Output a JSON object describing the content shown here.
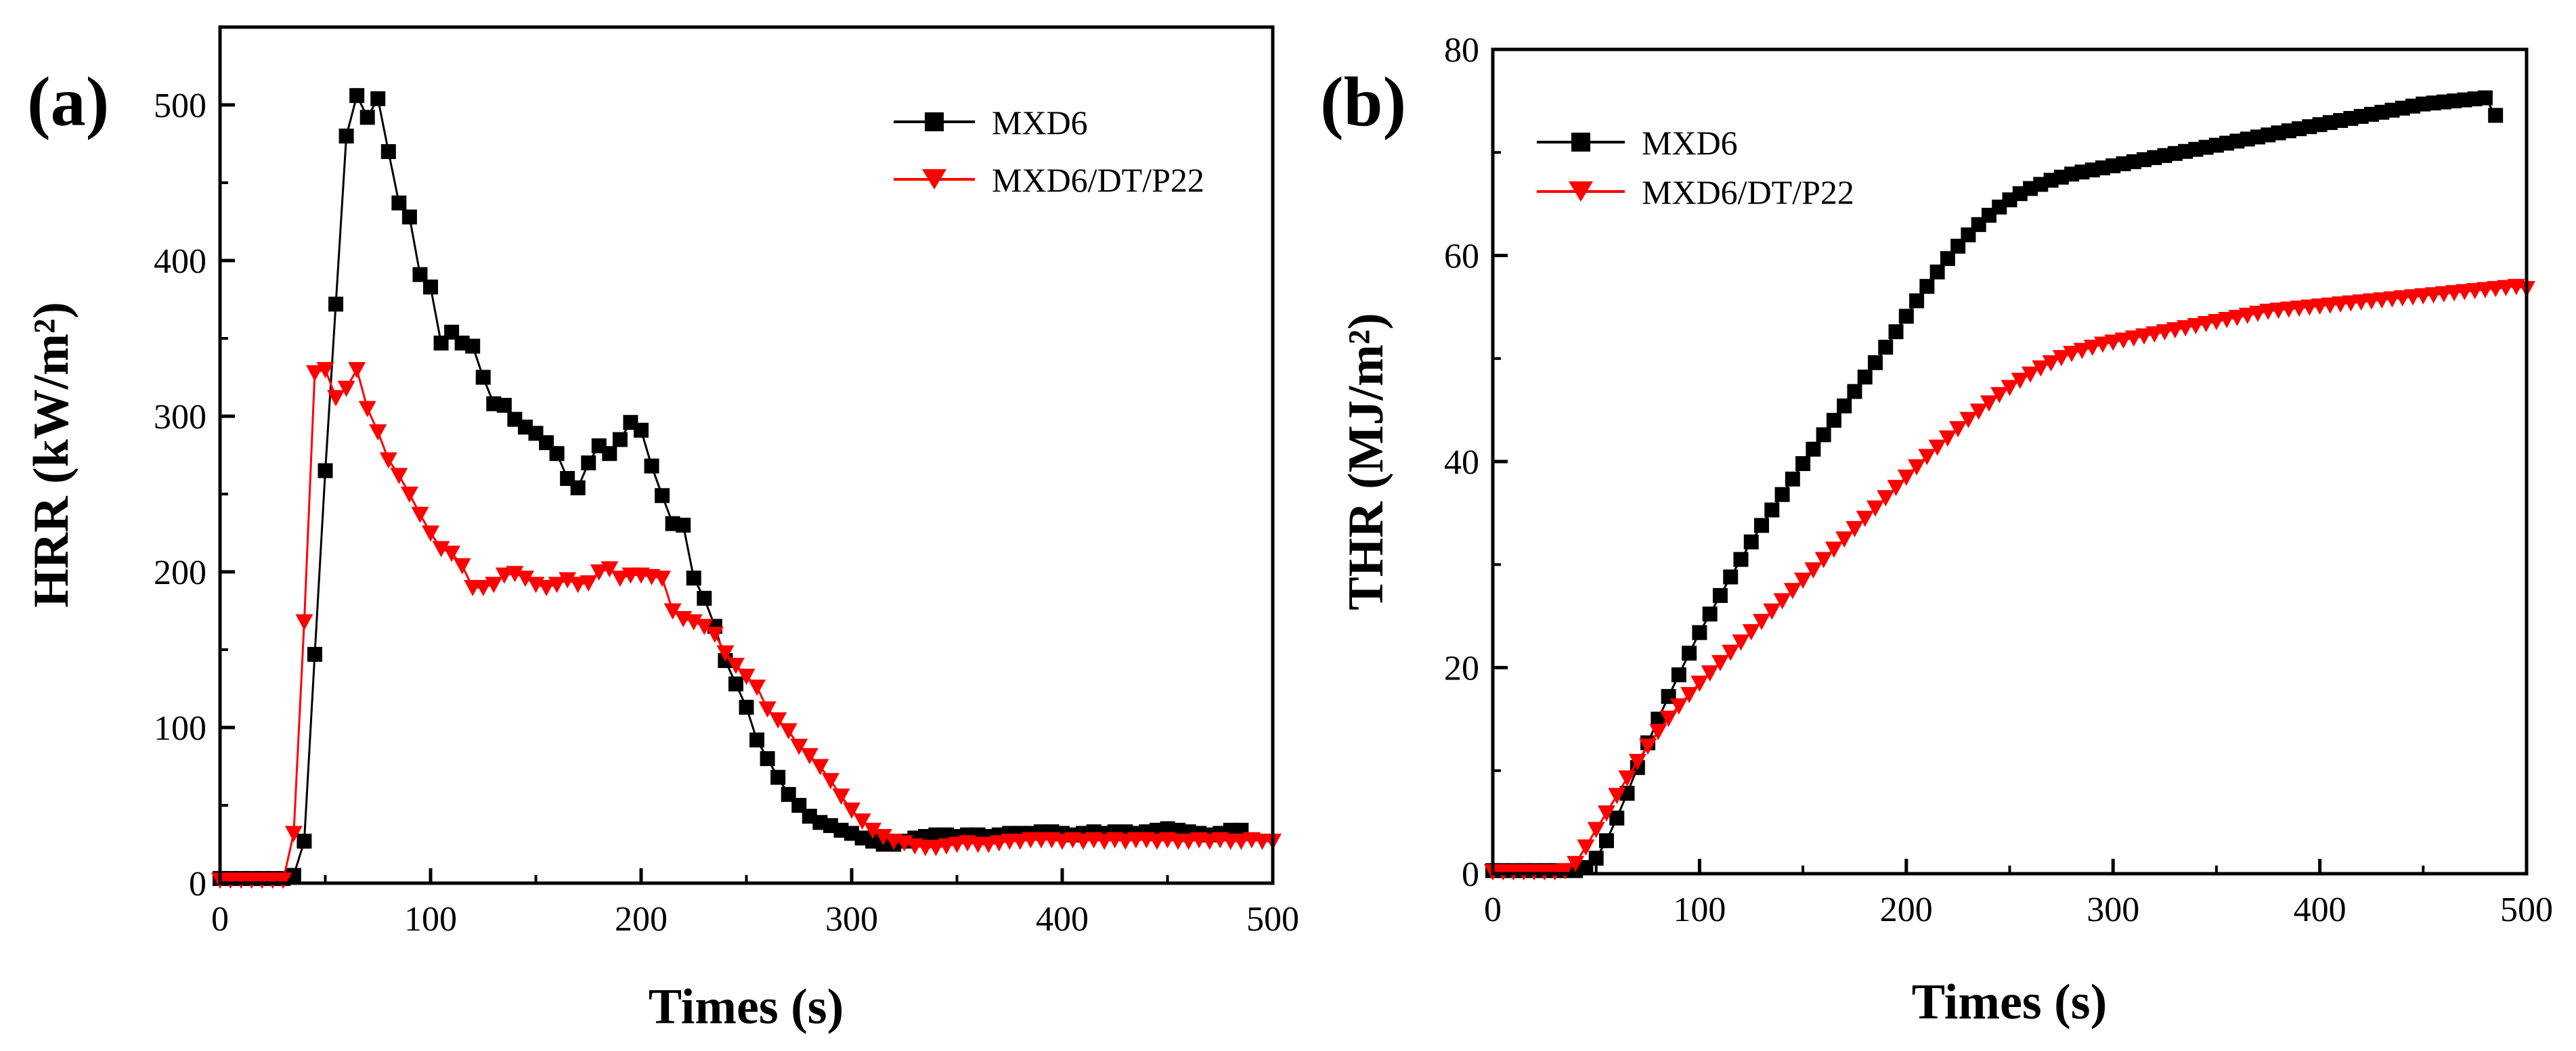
{
  "figure": {
    "panel_labels": [
      "(a)",
      "(b)"
    ]
  },
  "colors": {
    "MXD6": "#000000",
    "MXD6/DT/P22": "#ff0000",
    "axis": "#000000"
  },
  "chart_data": [
    {
      "type": "line",
      "panel": "(a)",
      "title": "",
      "xlabel": "Times (s)",
      "ylabel": "HRR (kW/m²)",
      "xlim": [
        0,
        500
      ],
      "ylim": [
        0,
        550
      ],
      "xticks": [
        0,
        100,
        200,
        300,
        400,
        500
      ],
      "yticks": [
        0,
        100,
        200,
        300,
        400,
        500
      ],
      "legend_position": "top-right",
      "grid": false,
      "series": [
        {
          "name": "MXD6",
          "marker": "square",
          "color": "#000000",
          "x": [
            0,
            5,
            10,
            15,
            20,
            25,
            30,
            35,
            40,
            45,
            50,
            55,
            60,
            65,
            70,
            75,
            80,
            85,
            90,
            95,
            100,
            105,
            110,
            115,
            120,
            125,
            130,
            135,
            140,
            145,
            150,
            155,
            160,
            165,
            170,
            175,
            180,
            185,
            190,
            195,
            200,
            205,
            210,
            215,
            220,
            225,
            230,
            235,
            240,
            245,
            250,
            255,
            260,
            265,
            270,
            275,
            280,
            285,
            290,
            295,
            300,
            305,
            310,
            315,
            320,
            325,
            330,
            335,
            340,
            345,
            350,
            355,
            360,
            365,
            370,
            375,
            380,
            385,
            390,
            395,
            400,
            405,
            410,
            415,
            420,
            425,
            430,
            435,
            440,
            445,
            450,
            455,
            460,
            465,
            470,
            475,
            480,
            485
          ],
          "y": [
            3,
            3,
            3,
            3,
            3,
            3,
            3,
            5,
            27,
            147,
            265,
            372,
            480,
            506,
            492,
            504,
            470,
            437,
            428,
            391,
            383,
            347,
            354,
            347,
            345,
            325,
            308,
            307,
            298,
            293,
            289,
            283,
            276,
            260,
            254,
            270,
            281,
            276,
            285,
            296,
            291,
            268,
            249,
            231,
            230,
            196,
            183,
            165,
            143,
            128,
            113,
            92,
            80,
            68,
            57,
            50,
            43,
            39,
            37,
            34,
            32,
            29,
            27,
            25,
            25,
            27,
            29,
            30,
            31,
            31,
            30,
            31,
            31,
            30,
            31,
            32,
            32,
            32,
            33,
            33,
            32,
            31,
            32,
            33,
            32,
            33,
            33,
            32,
            33,
            34,
            35,
            34,
            33,
            32,
            31,
            32,
            34,
            34
          ]
        },
        {
          "name": "MXD6/DT/P22",
          "marker": "triangle-down",
          "color": "#ff0000",
          "x": [
            0,
            5,
            10,
            15,
            20,
            25,
            30,
            35,
            40,
            45,
            50,
            55,
            60,
            65,
            70,
            75,
            80,
            85,
            90,
            95,
            100,
            105,
            110,
            115,
            120,
            125,
            130,
            135,
            140,
            145,
            150,
            155,
            160,
            165,
            170,
            175,
            180,
            185,
            190,
            195,
            200,
            205,
            210,
            215,
            220,
            225,
            230,
            235,
            240,
            245,
            250,
            255,
            260,
            265,
            270,
            275,
            280,
            285,
            290,
            295,
            300,
            305,
            310,
            315,
            320,
            325,
            330,
            335,
            340,
            345,
            350,
            355,
            360,
            365,
            370,
            375,
            380,
            385,
            390,
            395,
            400,
            405,
            410,
            415,
            420,
            425,
            430,
            435,
            440,
            445,
            450,
            455,
            460,
            465,
            470,
            475,
            480,
            485,
            490,
            495,
            500
          ],
          "y": [
            2,
            2,
            2,
            2,
            2,
            2,
            2,
            32,
            168,
            328,
            330,
            312,
            318,
            330,
            305,
            290,
            272,
            262,
            250,
            237,
            225,
            215,
            212,
            204,
            190,
            190,
            192,
            198,
            199,
            196,
            192,
            190,
            192,
            195,
            192,
            193,
            200,
            202,
            196,
            198,
            198,
            197,
            196,
            175,
            170,
            168,
            165,
            160,
            148,
            140,
            133,
            126,
            112,
            105,
            98,
            88,
            82,
            75,
            66,
            56,
            47,
            40,
            34,
            30,
            27,
            26,
            24,
            23,
            23,
            24,
            25,
            26,
            25,
            25,
            26,
            27,
            27,
            28,
            28,
            28,
            27,
            28,
            27,
            28,
            27,
            28,
            27,
            28,
            28,
            27,
            28,
            27,
            27,
            28,
            27,
            28,
            27,
            27,
            28,
            27,
            27
          ]
        }
      ]
    },
    {
      "type": "line",
      "panel": "(b)",
      "title": "",
      "xlabel": "Times (s)",
      "ylabel": "THR (MJ/m²)",
      "xlim": [
        0,
        500
      ],
      "ylim": [
        0,
        80
      ],
      "xticks": [
        0,
        100,
        200,
        300,
        400,
        500
      ],
      "yticks": [
        0,
        20,
        40,
        60,
        80
      ],
      "legend_position": "top-left",
      "grid": false,
      "series": [
        {
          "name": "MXD6",
          "marker": "square",
          "color": "#000000",
          "x": [
            0,
            5,
            10,
            15,
            20,
            25,
            30,
            35,
            40,
            45,
            50,
            55,
            60,
            65,
            70,
            75,
            80,
            85,
            90,
            95,
            100,
            105,
            110,
            115,
            120,
            125,
            130,
            135,
            140,
            145,
            150,
            155,
            160,
            165,
            170,
            175,
            180,
            185,
            190,
            195,
            200,
            205,
            210,
            215,
            220,
            225,
            230,
            235,
            240,
            245,
            250,
            255,
            260,
            265,
            270,
            275,
            280,
            285,
            290,
            295,
            300,
            305,
            310,
            315,
            320,
            325,
            330,
            335,
            340,
            345,
            350,
            355,
            360,
            365,
            370,
            375,
            380,
            385,
            390,
            395,
            400,
            405,
            410,
            415,
            420,
            425,
            430,
            435,
            440,
            445,
            450,
            455,
            460,
            465,
            470,
            475,
            480,
            485
          ],
          "y": [
            0.3,
            0.3,
            0.3,
            0.3,
            0.3,
            0.3,
            0.3,
            0.3,
            0.3,
            0.6,
            1.5,
            3.2,
            5.4,
            7.8,
            10.3,
            12.7,
            15.0,
            17.2,
            19.3,
            21.4,
            23.4,
            25.2,
            27.0,
            28.8,
            30.5,
            32.2,
            33.8,
            35.3,
            36.8,
            38.3,
            39.8,
            41.2,
            42.6,
            44.0,
            45.4,
            46.8,
            48.2,
            49.6,
            51.1,
            52.6,
            54.1,
            55.6,
            57.0,
            58.4,
            59.7,
            60.9,
            62.0,
            63.0,
            63.9,
            64.7,
            65.4,
            66.0,
            66.5,
            66.9,
            67.3,
            67.6,
            67.9,
            68.1,
            68.3,
            68.5,
            68.7,
            68.9,
            69.1,
            69.3,
            69.5,
            69.7,
            69.9,
            70.1,
            70.3,
            70.5,
            70.7,
            70.9,
            71.1,
            71.3,
            71.5,
            71.7,
            71.9,
            72.1,
            72.3,
            72.5,
            72.7,
            72.9,
            73.1,
            73.3,
            73.5,
            73.7,
            73.9,
            74.1,
            74.3,
            74.5,
            74.7,
            74.8,
            74.9,
            75.0,
            75.1,
            75.2,
            75.3,
            73.6
          ]
        },
        {
          "name": "MXD6/DT/P22",
          "marker": "triangle-down",
          "color": "#ff0000",
          "x": [
            0,
            5,
            10,
            15,
            20,
            25,
            30,
            35,
            40,
            45,
            50,
            55,
            60,
            65,
            70,
            75,
            80,
            85,
            90,
            95,
            100,
            105,
            110,
            115,
            120,
            125,
            130,
            135,
            140,
            145,
            150,
            155,
            160,
            165,
            170,
            175,
            180,
            185,
            190,
            195,
            200,
            205,
            210,
            215,
            220,
            225,
            230,
            235,
            240,
            245,
            250,
            255,
            260,
            265,
            270,
            275,
            280,
            285,
            290,
            295,
            300,
            305,
            310,
            315,
            320,
            325,
            330,
            335,
            340,
            345,
            350,
            355,
            360,
            365,
            370,
            375,
            380,
            385,
            390,
            395,
            400,
            405,
            410,
            415,
            420,
            425,
            430,
            435,
            440,
            445,
            450,
            455,
            460,
            465,
            470,
            475,
            480,
            485,
            490,
            495,
            500
          ],
          "y": [
            0.2,
            0.2,
            0.2,
            0.2,
            0.2,
            0.2,
            0.2,
            0.3,
            1.0,
            2.6,
            4.3,
            5.9,
            7.6,
            9.3,
            10.9,
            12.4,
            13.8,
            15.1,
            16.3,
            17.4,
            18.5,
            19.5,
            20.5,
            21.5,
            22.5,
            23.5,
            24.5,
            25.5,
            26.5,
            27.5,
            28.5,
            29.5,
            30.5,
            31.5,
            32.5,
            33.5,
            34.5,
            35.5,
            36.5,
            37.5,
            38.5,
            39.5,
            40.5,
            41.4,
            42.3,
            43.2,
            44.1,
            44.9,
            45.7,
            46.5,
            47.2,
            47.9,
            48.5,
            49.1,
            49.6,
            50.1,
            50.5,
            50.8,
            51.1,
            51.4,
            51.6,
            51.8,
            52.0,
            52.2,
            52.4,
            52.6,
            52.8,
            53.0,
            53.2,
            53.4,
            53.6,
            53.8,
            54.0,
            54.2,
            54.4,
            54.6,
            54.7,
            54.8,
            54.9,
            55.0,
            55.1,
            55.2,
            55.3,
            55.4,
            55.5,
            55.6,
            55.7,
            55.8,
            55.9,
            56.0,
            56.1,
            56.2,
            56.3,
            56.4,
            56.5,
            56.6,
            56.7,
            56.8,
            56.9,
            57.0,
            56.8
          ]
        }
      ]
    }
  ]
}
